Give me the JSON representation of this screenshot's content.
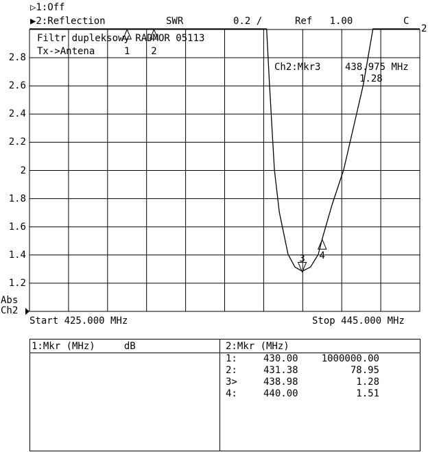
{
  "header": {
    "ch1": "▷1:Off",
    "ch2": "▶2:Reflection",
    "format": "SWR",
    "scale": "0.2 /",
    "ref": "Ref   1.00",
    "cal": "C",
    "ch_num": "2"
  },
  "title_lines": [
    "Filtr dupleksowy RADMOR 05113",
    "Tx->Antena"
  ],
  "active_marker": {
    "label": "Ch2:Mkr3",
    "freq": "438.975 MHz",
    "value": "1.28"
  },
  "axis_side": {
    "abs": "Abs",
    "ch": "Ch2"
  },
  "start_label": "Start 425.000 MHz",
  "stop_label": "Stop 445.000 MHz",
  "chart_data": {
    "type": "line",
    "xlabel": "",
    "ylabel": "",
    "xlim": [
      425,
      445
    ],
    "ylim": [
      1.0,
      3.0
    ],
    "y_ticks": [
      "2.8",
      "2.6",
      "2.4",
      "2.2",
      "2",
      "1.8",
      "1.6",
      "1.4",
      "1.2"
    ],
    "y_tick_values": [
      2.8,
      2.6,
      2.4,
      2.2,
      2.0,
      1.8,
      1.6,
      1.4,
      1.2
    ],
    "x_divisions": 10,
    "grid": true,
    "series": [
      {
        "x": [
          425,
          437.15,
          437.3,
          437.55,
          437.8,
          438.25,
          438.6,
          438.975,
          439.4,
          439.8,
          440,
          440.5,
          441.1,
          441.6,
          442.1,
          442.6,
          445
        ],
        "y": [
          3.0,
          3.0,
          2.6,
          2.0,
          1.7,
          1.4,
          1.31,
          1.28,
          1.31,
          1.4,
          1.51,
          1.75,
          2.0,
          2.3,
          2.6,
          3.0,
          3.0
        ]
      }
    ],
    "markers": [
      {
        "id": "1",
        "x": 430.0,
        "y": 3.0,
        "dir": "up"
      },
      {
        "id": "2",
        "x": 431.38,
        "y": 3.0,
        "dir": "up"
      },
      {
        "id": "3",
        "x": 438.975,
        "y": 1.28,
        "dir": "down"
      },
      {
        "id": "4",
        "x": 440.0,
        "y": 1.51,
        "dir": "up"
      }
    ]
  },
  "table": {
    "ch1_header": "1:Mkr (MHz)     dB",
    "ch2_header": "2:Mkr (MHz)",
    "ch2_rows": [
      {
        "id": "1:",
        "freq": "430.00",
        "value": "1000000.00"
      },
      {
        "id": "2:",
        "freq": "431.38",
        "value": "78.95"
      },
      {
        "id": "3>",
        "freq": "438.98",
        "value": "1.28"
      },
      {
        "id": "4:",
        "freq": "440.00",
        "value": "1.51"
      }
    ]
  }
}
